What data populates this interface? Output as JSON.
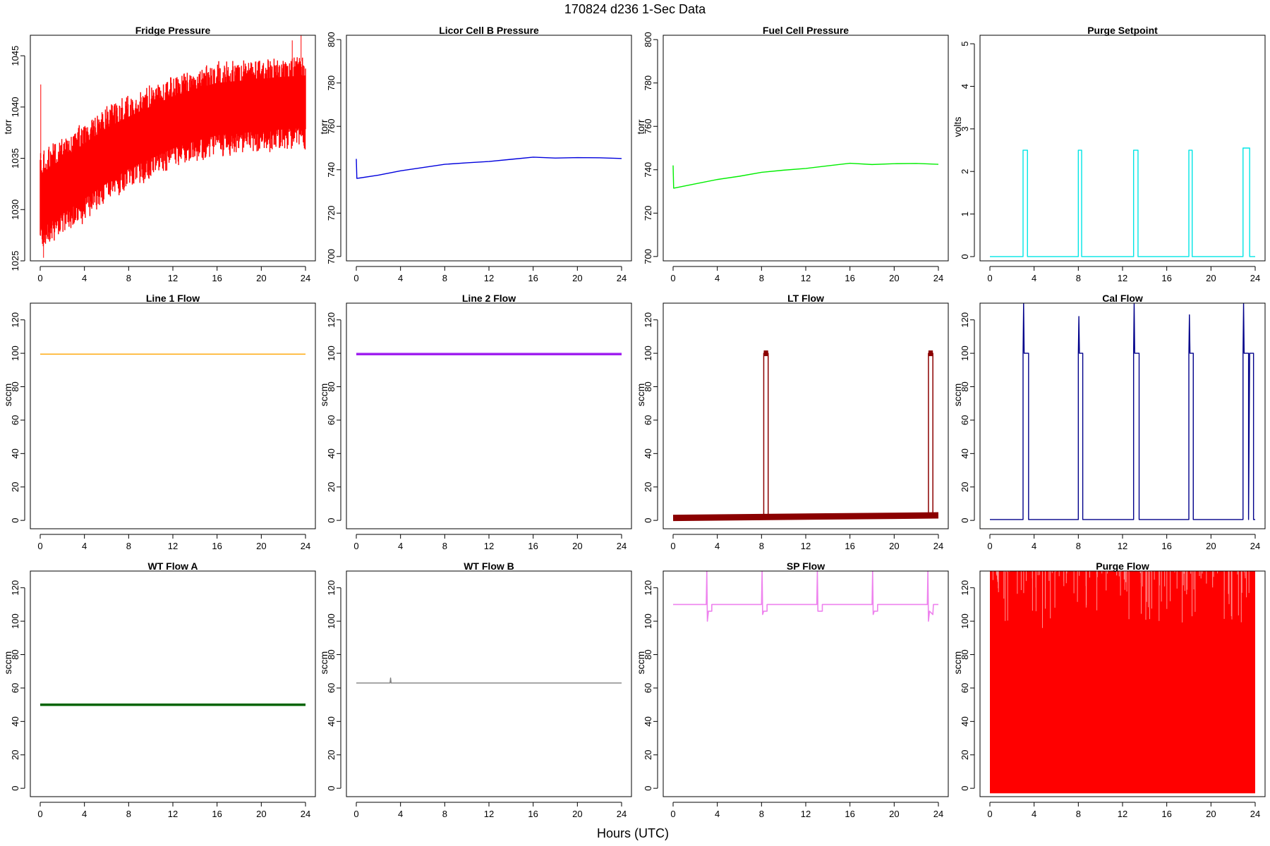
{
  "title": "170824   d236   1-Sec Data",
  "xlabel": "Hours (UTC)",
  "chart_data": [
    {
      "type": "line",
      "title": "Fridge Pressure",
      "ylabel": "torr",
      "color": "#ff0000",
      "xlim": [
        0,
        24
      ],
      "ylim": [
        1025,
        1047
      ],
      "xticks": [
        0,
        4,
        8,
        12,
        16,
        20,
        24
      ],
      "yticks": [
        1025,
        1030,
        1035,
        1040,
        1045
      ],
      "band": {
        "x": [
          0,
          2,
          4,
          6,
          8,
          10,
          12,
          14,
          16,
          18,
          20,
          22,
          24
        ],
        "low": [
          1026.5,
          1028,
          1029.5,
          1031,
          1032.5,
          1033.5,
          1034.5,
          1035.2,
          1035.8,
          1036,
          1036.2,
          1036.4,
          1036.5
        ],
        "high": [
          1035,
          1036.5,
          1038,
          1039.5,
          1040.5,
          1041.5,
          1042.5,
          1043.2,
          1043.8,
          1044,
          1044.2,
          1044.4,
          1044.5
        ]
      },
      "spikes": [
        {
          "x": 0.05,
          "y": 1042.2
        },
        {
          "x": 23.6,
          "y": 1047
        },
        {
          "x": 22.8,
          "y": 1046.5
        },
        {
          "x": 0.3,
          "y": 1025.3
        }
      ]
    },
    {
      "type": "line",
      "title": "Licor Cell B Pressure",
      "ylabel": "torr",
      "color": "#0000dd",
      "xlim": [
        0,
        24
      ],
      "ylim": [
        698,
        802
      ],
      "xticks": [
        0,
        4,
        8,
        12,
        16,
        20,
        24
      ],
      "yticks": [
        700,
        720,
        740,
        760,
        780,
        800
      ],
      "x": [
        0,
        0.05,
        2,
        4,
        6,
        8,
        10,
        12,
        14,
        16,
        18,
        20,
        22,
        24
      ],
      "y": [
        745,
        736,
        737.5,
        739.5,
        741,
        742.5,
        743.2,
        743.8,
        744.8,
        745.8,
        745.4,
        745.6,
        745.5,
        745.2
      ]
    },
    {
      "type": "line",
      "title": "Fuel Cell Pressure",
      "ylabel": "torr",
      "color": "#00ee00",
      "xlim": [
        0,
        24
      ],
      "ylim": [
        698,
        802
      ],
      "xticks": [
        0,
        4,
        8,
        12,
        16,
        20,
        24
      ],
      "yticks": [
        700,
        720,
        740,
        760,
        780,
        800
      ],
      "x": [
        0,
        0.05,
        2,
        4,
        6,
        8,
        10,
        12,
        14,
        16,
        18,
        20,
        22,
        24
      ],
      "y": [
        742,
        731.5,
        733.5,
        735.5,
        737,
        738.8,
        739.8,
        740.6,
        741.8,
        743,
        742.4,
        742.8,
        742.9,
        742.5
      ]
    },
    {
      "type": "line",
      "title": "Purge Setpoint",
      "ylabel": "volts",
      "color": "#00e5e5",
      "xlim": [
        0,
        24
      ],
      "ylim": [
        -0.1,
        5.2
      ],
      "xticks": [
        0,
        4,
        8,
        12,
        16,
        20,
        24
      ],
      "yticks": [
        0,
        1,
        2,
        3,
        4,
        5
      ],
      "x": [
        0,
        3.0,
        3.0,
        3.4,
        3.4,
        8.0,
        8.0,
        8.3,
        8.3,
        13.0,
        13.0,
        13.4,
        13.4,
        18.0,
        18.0,
        18.3,
        18.3,
        22.9,
        22.9,
        23.5,
        23.5,
        24
      ],
      "y": [
        0,
        0,
        2.5,
        2.5,
        0,
        0,
        2.5,
        2.5,
        0,
        0,
        2.5,
        2.5,
        0,
        0,
        2.5,
        2.5,
        0,
        0,
        2.55,
        2.55,
        0,
        0
      ]
    },
    {
      "type": "line",
      "title": "Line 1 Flow",
      "ylabel": "sccm",
      "color": "#ffa500",
      "xlim": [
        0,
        24
      ],
      "ylim": [
        -5,
        130
      ],
      "xticks": [
        0,
        4,
        8,
        12,
        16,
        20,
        24
      ],
      "yticks": [
        0,
        20,
        40,
        60,
        80,
        100,
        120
      ],
      "x": [
        0,
        24
      ],
      "y": [
        99.5,
        99.5
      ]
    },
    {
      "type": "line",
      "title": "Line 2 Flow",
      "ylabel": "sccm",
      "color": "#a020f0",
      "xlim": [
        0,
        24
      ],
      "ylim": [
        -5,
        130
      ],
      "xticks": [
        0,
        4,
        8,
        12,
        16,
        20,
        24
      ],
      "yticks": [
        0,
        20,
        40,
        60,
        80,
        100,
        120
      ],
      "x": [
        0,
        24
      ],
      "y": [
        99.5,
        99.5
      ]
    },
    {
      "type": "line",
      "title": "LT Flow",
      "ylabel": "sccm",
      "color": "#8b0000",
      "xlim": [
        0,
        24
      ],
      "ylim": [
        -5,
        130
      ],
      "xticks": [
        0,
        4,
        8,
        12,
        16,
        20,
        24
      ],
      "yticks": [
        0,
        20,
        40,
        60,
        80,
        100,
        120
      ],
      "x": [
        0,
        8.2,
        8.2,
        8.6,
        8.6,
        23.1,
        23.1,
        23.5,
        23.5,
        24
      ],
      "y": [
        1.5,
        2,
        100,
        100,
        2,
        3,
        100,
        100,
        3,
        3
      ]
    },
    {
      "type": "line",
      "title": "Cal Flow",
      "ylabel": "sccm",
      "color": "#00008b",
      "xlim": [
        0,
        24
      ],
      "ylim": [
        -5,
        130
      ],
      "xticks": [
        0,
        4,
        8,
        12,
        16,
        20,
        24
      ],
      "yticks": [
        0,
        20,
        40,
        60,
        80,
        100,
        120
      ],
      "x": [
        0,
        3.0,
        3.0,
        3.05,
        3.1,
        3.5,
        3.5,
        8.0,
        8.0,
        8.05,
        8.1,
        8.4,
        8.4,
        13.0,
        13.0,
        13.05,
        13.1,
        13.5,
        13.5,
        18.0,
        18.0,
        18.05,
        18.1,
        18.4,
        18.4,
        22.9,
        22.9,
        22.95,
        23.0,
        23.4,
        23.4,
        23.5,
        23.5,
        23.85,
        23.85,
        24
      ],
      "y": [
        0.5,
        0.5,
        100,
        130,
        100,
        100,
        0.5,
        0.5,
        100,
        122,
        100,
        100,
        0.5,
        0.5,
        100,
        130,
        100,
        100,
        0.5,
        0.5,
        100,
        123,
        100,
        100,
        0.5,
        0.5,
        100,
        130,
        100,
        100,
        0.5,
        100,
        100,
        100,
        0.5,
        0.5
      ]
    },
    {
      "type": "line",
      "title": "WT Flow A",
      "ylabel": "sccm",
      "color": "#006400",
      "xlim": [
        0,
        24
      ],
      "ylim": [
        -5,
        130
      ],
      "xticks": [
        0,
        4,
        8,
        12,
        16,
        20,
        24
      ],
      "yticks": [
        0,
        20,
        40,
        60,
        80,
        100,
        120
      ],
      "x": [
        0,
        24
      ],
      "y": [
        50,
        50
      ]
    },
    {
      "type": "line",
      "title": "WT Flow B",
      "ylabel": "sccm",
      "color": "#808080",
      "xlim": [
        0,
        24
      ],
      "ylim": [
        -5,
        130
      ],
      "xticks": [
        0,
        4,
        8,
        12,
        16,
        20,
        24
      ],
      "yticks": [
        0,
        20,
        40,
        60,
        80,
        100,
        120
      ],
      "x": [
        0,
        3.05,
        3.1,
        3.15,
        24
      ],
      "y": [
        63,
        63,
        66,
        63,
        63
      ]
    },
    {
      "type": "line",
      "title": "SP Flow",
      "ylabel": "sccm",
      "color": "#ee82ee",
      "xlim": [
        0,
        24
      ],
      "ylim": [
        -5,
        130
      ],
      "xticks": [
        0,
        4,
        8,
        12,
        16,
        20,
        24
      ],
      "yticks": [
        0,
        20,
        40,
        60,
        80,
        100,
        120
      ],
      "x": [
        0,
        3.0,
        3.05,
        3.1,
        3.2,
        3.5,
        3.5,
        8.0,
        8.05,
        8.1,
        8.2,
        8.5,
        8.5,
        13.0,
        13.05,
        13.1,
        13.2,
        13.5,
        13.5,
        18.0,
        18.05,
        18.1,
        18.2,
        18.5,
        18.5,
        23.0,
        23.05,
        23.1,
        23.2,
        23.5,
        23.55,
        24
      ],
      "y": [
        110,
        110,
        130,
        100,
        106,
        106,
        110,
        110,
        130,
        104,
        106,
        106,
        110,
        110,
        130,
        106,
        106,
        106,
        110,
        110,
        130,
        104,
        106,
        106,
        110,
        110,
        130,
        100,
        106,
        104,
        110,
        110
      ]
    },
    {
      "type": "area",
      "title": "Purge Flow",
      "ylabel": "sccm",
      "color": "#ff0000",
      "xlim": [
        0,
        24
      ],
      "ylim": [
        -5,
        130
      ],
      "xticks": [
        0,
        4,
        8,
        12,
        16,
        20,
        24
      ],
      "yticks": [
        0,
        20,
        40,
        60,
        80,
        100,
        120
      ],
      "range": [
        -3,
        130
      ]
    }
  ]
}
